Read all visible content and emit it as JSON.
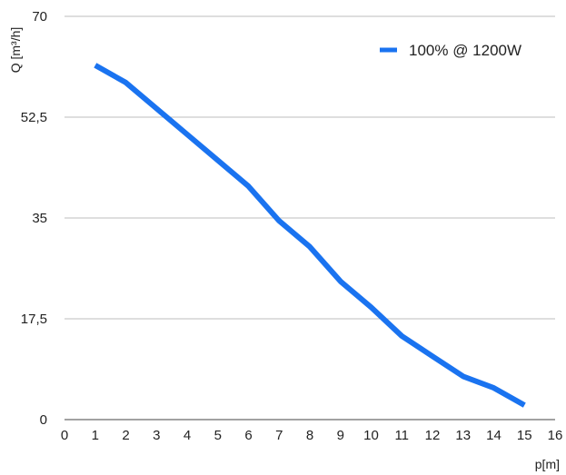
{
  "chart_data": {
    "type": "line",
    "title": "",
    "xlabel": "p[m]",
    "ylabel": "Q [m³/h]",
    "xlim": [
      0,
      16
    ],
    "ylim": [
      0,
      70
    ],
    "x_ticks": [
      "0",
      "1",
      "2",
      "3",
      "4",
      "5",
      "6",
      "7",
      "8",
      "9",
      "10",
      "11",
      "12",
      "13",
      "14",
      "15",
      "16"
    ],
    "y_ticks": [
      "0",
      "17,5",
      "35",
      "52,5",
      "70"
    ],
    "y_tick_values": [
      0,
      17.5,
      35,
      52.5,
      70
    ],
    "grid": "horizontal",
    "legend_position": "top-right",
    "series": [
      {
        "name": "100% @ 1200W",
        "color": "#1a73f0",
        "x": [
          1,
          2,
          3,
          4,
          5,
          6,
          7,
          8,
          9,
          10,
          11,
          12,
          13,
          14,
          15
        ],
        "y": [
          61.5,
          58.5,
          54,
          49.5,
          45,
          40.5,
          34.5,
          30,
          24,
          19.5,
          14.5,
          11,
          7.5,
          5.5,
          2.5
        ]
      }
    ]
  }
}
